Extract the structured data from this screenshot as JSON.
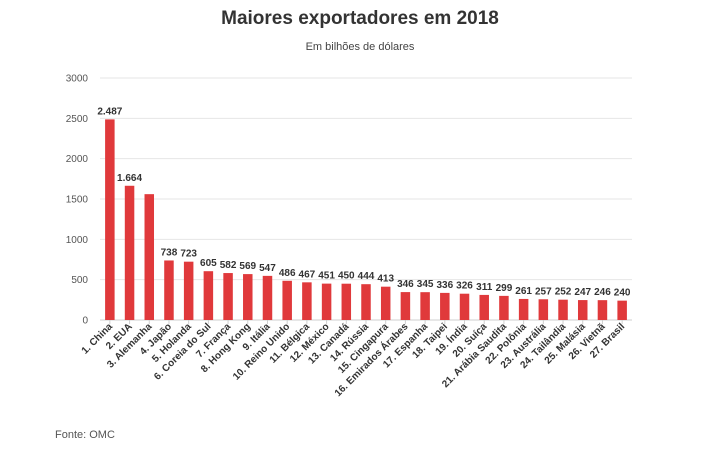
{
  "chart_data": {
    "type": "bar",
    "title": "Maiores exportadores em 2018",
    "subtitle": "Em bilhões de dólares",
    "source": "Fonte: OMC",
    "xlabel": "",
    "ylabel": "",
    "ylim": [
      0,
      3000
    ],
    "yticks": [
      0,
      500,
      1000,
      1500,
      2000,
      2500,
      3000
    ],
    "grid": true,
    "bar_color": "#e0393b",
    "categories": [
      "1. China",
      "2. EUA",
      "3. Alemanha",
      "4. Japão",
      "5. Holanda",
      "6. Coreia do Sul",
      "7. França",
      "8. Hong Kong",
      "9. Itália",
      "10. Reino Unido",
      "11. Bélgica",
      "12. México",
      "13. Canadá",
      "14. Rússia",
      "15. Cingapura",
      "16. Emirados Árabes",
      "17. Espanha",
      "18. Taipei",
      "19. Índia",
      "20. Suíça",
      "21. Arábia Saudita",
      "22. Polônia",
      "23. Austrália",
      "24. Tailândia",
      "25. Malásia",
      "26. Vietnã",
      "27. Brasil"
    ],
    "values": [
      2487,
      1664,
      1560,
      738,
      723,
      605,
      582,
      569,
      547,
      486,
      467,
      451,
      450,
      444,
      413,
      346,
      345,
      336,
      326,
      311,
      299,
      261,
      257,
      252,
      247,
      246,
      240
    ],
    "data_labels": [
      "2.487",
      "1.664",
      "",
      "738",
      "723",
      "605",
      "582",
      "569",
      "547",
      "486",
      "467",
      "451",
      "450",
      "444",
      "413",
      "346",
      "345",
      "336",
      "326",
      "311",
      "299",
      "261",
      "257",
      "252",
      "247",
      "246",
      "240"
    ]
  }
}
